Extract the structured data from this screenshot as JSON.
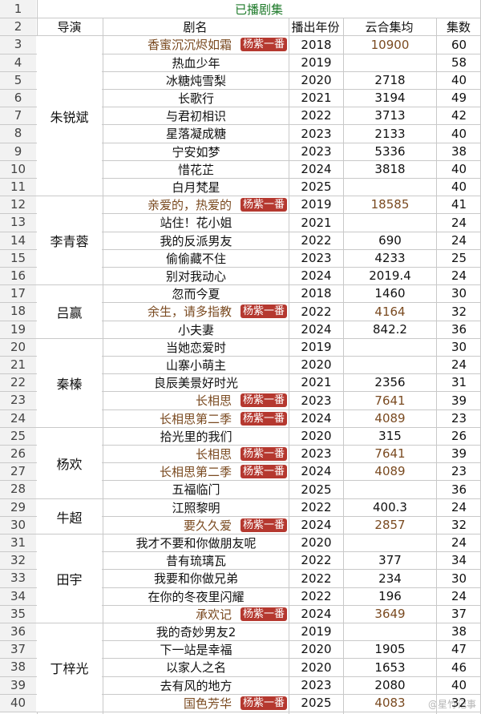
{
  "sheet_title": "已播剧集",
  "headers": {
    "director": "导演",
    "drama": "剧名",
    "year": "播出年份",
    "yunhe": "云合集均",
    "episodes": "集数"
  },
  "badge_label": "杨紫一番",
  "watermark": "@星竹记事",
  "row_numbers": [
    "1",
    "2",
    "3",
    "4",
    "5",
    "6",
    "7",
    "8",
    "9",
    "10",
    "11",
    "12",
    "13",
    "14",
    "15",
    "16",
    "17",
    "18",
    "19",
    "20",
    "21",
    "22",
    "23",
    "24",
    "25",
    "26",
    "27",
    "28",
    "29",
    "30",
    "31",
    "32",
    "33",
    "34",
    "35",
    "36",
    "37",
    "38",
    "39",
    "40"
  ],
  "directors": [
    {
      "name": "朱锐斌",
      "rows": [
        3,
        11
      ]
    },
    {
      "name": "李青蓉",
      "rows": [
        12,
        16
      ]
    },
    {
      "name": "吕赢",
      "rows": [
        17,
        19
      ]
    },
    {
      "name": "秦榛",
      "rows": [
        20,
        24
      ]
    },
    {
      "name": "杨欢",
      "rows": [
        25,
        28
      ]
    },
    {
      "name": "牛超",
      "rows": [
        29,
        30
      ]
    },
    {
      "name": "田宇",
      "rows": [
        31,
        35
      ]
    },
    {
      "name": "丁梓光",
      "rows": [
        36,
        40
      ]
    }
  ],
  "rows": [
    {
      "row": 3,
      "title": "香蜜沉沉烬如霜",
      "badge": true,
      "year": "2018",
      "yunhe": "10900",
      "episodes": "60"
    },
    {
      "row": 4,
      "title": "热血少年",
      "badge": false,
      "year": "2019",
      "yunhe": "",
      "episodes": "58"
    },
    {
      "row": 5,
      "title": "冰糖炖雪梨",
      "badge": false,
      "year": "2020",
      "yunhe": "2718",
      "episodes": "40"
    },
    {
      "row": 6,
      "title": "长歌行",
      "badge": false,
      "year": "2021",
      "yunhe": "3194",
      "episodes": "49"
    },
    {
      "row": 7,
      "title": "与君初相识",
      "badge": false,
      "year": "2022",
      "yunhe": "3713",
      "episodes": "42"
    },
    {
      "row": 8,
      "title": "星落凝成糖",
      "badge": false,
      "year": "2023",
      "yunhe": "2133",
      "episodes": "40"
    },
    {
      "row": 9,
      "title": "宁安如梦",
      "badge": false,
      "year": "2023",
      "yunhe": "5336",
      "episodes": "38"
    },
    {
      "row": 10,
      "title": "惜花芷",
      "badge": false,
      "year": "2024",
      "yunhe": "3818",
      "episodes": "40"
    },
    {
      "row": 11,
      "title": "白月梵星",
      "badge": false,
      "year": "2025",
      "yunhe": "",
      "episodes": "40"
    },
    {
      "row": 12,
      "title": "亲爱的，热爱的",
      "badge": true,
      "year": "2019",
      "yunhe": "18585",
      "episodes": "41"
    },
    {
      "row": 13,
      "title": "站住！花小姐",
      "badge": false,
      "year": "2021",
      "yunhe": "",
      "episodes": "24"
    },
    {
      "row": 14,
      "title": "我的反派男友",
      "badge": false,
      "year": "2022",
      "yunhe": "690",
      "episodes": "24"
    },
    {
      "row": 15,
      "title": "偷偷藏不住",
      "badge": false,
      "year": "2023",
      "yunhe": "4233",
      "episodes": "25"
    },
    {
      "row": 16,
      "title": "别对我动心",
      "badge": false,
      "year": "2024",
      "yunhe": "2019.4",
      "episodes": "24"
    },
    {
      "row": 17,
      "title": "忽而今夏",
      "badge": false,
      "year": "2018",
      "yunhe": "1460",
      "episodes": "30"
    },
    {
      "row": 18,
      "title": "余生，请多指教",
      "badge": true,
      "year": "2022",
      "yunhe": "4164",
      "episodes": "32"
    },
    {
      "row": 19,
      "title": "小夫妻",
      "badge": false,
      "year": "2024",
      "yunhe": "842.2",
      "episodes": "36"
    },
    {
      "row": 20,
      "title": "当她恋爱时",
      "badge": false,
      "year": "2019",
      "yunhe": "",
      "episodes": "30"
    },
    {
      "row": 21,
      "title": "山寨小萌主",
      "badge": false,
      "year": "2020",
      "yunhe": "",
      "episodes": "24"
    },
    {
      "row": 22,
      "title": "良辰美景好时光",
      "badge": false,
      "year": "2021",
      "yunhe": "2356",
      "episodes": "31"
    },
    {
      "row": 23,
      "title": "长相思",
      "badge": true,
      "year": "2023",
      "yunhe": "7641",
      "episodes": "39"
    },
    {
      "row": 24,
      "title": "长相思第二季",
      "badge": true,
      "year": "2024",
      "yunhe": "4089",
      "episodes": "23"
    },
    {
      "row": 25,
      "title": "拾光里的我们",
      "badge": false,
      "year": "2020",
      "yunhe": "315",
      "episodes": "26"
    },
    {
      "row": 26,
      "title": "长相思",
      "badge": true,
      "year": "2023",
      "yunhe": "7641",
      "episodes": "39"
    },
    {
      "row": 27,
      "title": "长相思第二季",
      "badge": true,
      "year": "2024",
      "yunhe": "4089",
      "episodes": "23"
    },
    {
      "row": 28,
      "title": "五福临门",
      "badge": false,
      "year": "2025",
      "yunhe": "",
      "episodes": "36"
    },
    {
      "row": 29,
      "title": "江照黎明",
      "badge": false,
      "year": "2022",
      "yunhe": "400.3",
      "episodes": "24"
    },
    {
      "row": 30,
      "title": "要久久爱",
      "badge": true,
      "year": "2024",
      "yunhe": "2857",
      "episodes": "32"
    },
    {
      "row": 31,
      "title": "我才不要和你做朋友呢",
      "badge": false,
      "year": "2020",
      "yunhe": "",
      "episodes": "24"
    },
    {
      "row": 32,
      "title": "昔有琉璃瓦",
      "badge": false,
      "year": "2022",
      "yunhe": "377",
      "episodes": "34"
    },
    {
      "row": 33,
      "title": "我要和你做兄弟",
      "badge": false,
      "year": "2022",
      "yunhe": "234",
      "episodes": "30"
    },
    {
      "row": 34,
      "title": "在你的冬夜里闪耀",
      "badge": false,
      "year": "2022",
      "yunhe": "196",
      "episodes": "24"
    },
    {
      "row": 35,
      "title": "承欢记",
      "badge": true,
      "year": "2024",
      "yunhe": "3649",
      "episodes": "37"
    },
    {
      "row": 36,
      "title": "我的奇妙男友2",
      "badge": false,
      "year": "2019",
      "yunhe": "",
      "episodes": "38"
    },
    {
      "row": 37,
      "title": "下一站是幸福",
      "badge": false,
      "year": "2020",
      "yunhe": "1905",
      "episodes": "47"
    },
    {
      "row": 38,
      "title": "以家人之名",
      "badge": false,
      "year": "2020",
      "yunhe": "1653",
      "episodes": "46"
    },
    {
      "row": 39,
      "title": "去有风的地方",
      "badge": false,
      "year": "2023",
      "yunhe": "2080",
      "episodes": "40"
    },
    {
      "row": 40,
      "title": "国色芳华",
      "badge": true,
      "year": "2025",
      "yunhe": "4083",
      "episodes": "32"
    }
  ]
}
